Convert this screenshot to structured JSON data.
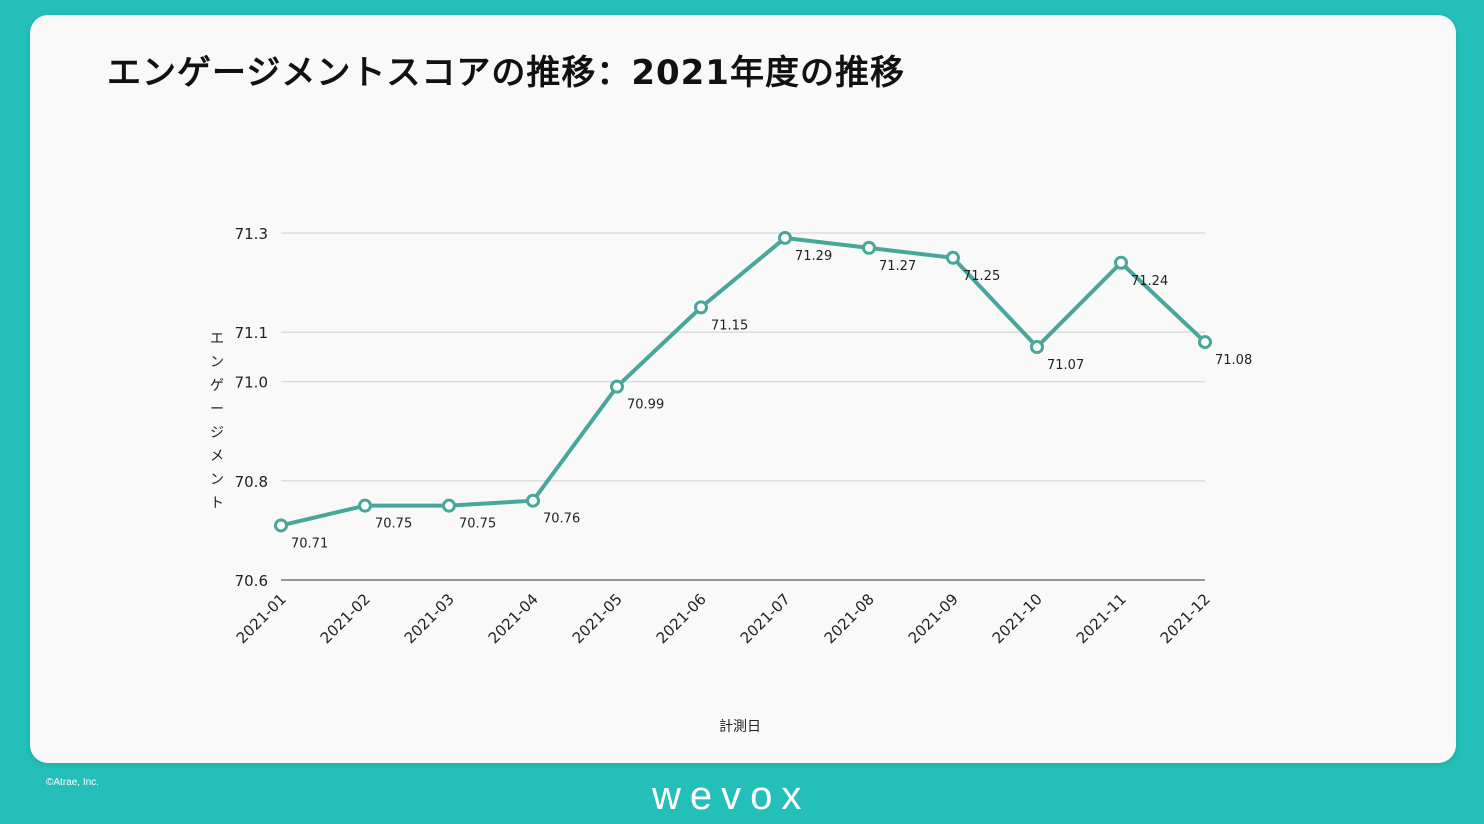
{
  "page": {
    "copyright": "©Atrae, Inc.",
    "brand": "wevox",
    "accent_color": "#25bfb9",
    "line_color": "#47a79a"
  },
  "chart_data": {
    "type": "line",
    "title": "エンゲージメントスコアの推移：2021年度の推移",
    "xlabel": "計測日",
    "ylabel": "エンゲージメント",
    "categories": [
      "2021-01",
      "2021-02",
      "2021-03",
      "2021-04",
      "2021-05",
      "2021-06",
      "2021-07",
      "2021-08",
      "2021-09",
      "2021-10",
      "2021-11",
      "2021-12"
    ],
    "series": [
      {
        "values": [
          70.71,
          70.75,
          70.75,
          70.76,
          70.99,
          71.15,
          71.29,
          71.27,
          71.25,
          71.07,
          71.24,
          71.08
        ],
        "labels": [
          "70.71",
          "70.75",
          "70.75",
          "70.76",
          "70.99",
          "71.15",
          "71.29",
          "71.27",
          "71.25",
          "71.07",
          "71.24",
          "71.08"
        ]
      }
    ],
    "yticks": [
      70.6,
      70.8,
      71.0,
      71.1,
      71.3
    ],
    "ytick_labels": [
      "70.6",
      "70.8",
      "71.0",
      "71.1",
      "71.3"
    ],
    "ylim": [
      70.6,
      71.3
    ],
    "grid": true,
    "legend": "none"
  }
}
